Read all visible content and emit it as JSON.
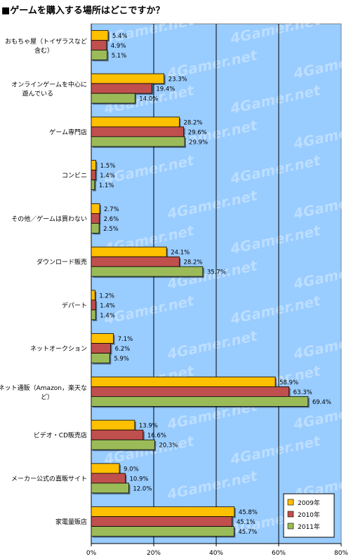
{
  "title": "■ゲームを購入する場所はどこですか？",
  "watermark": "4Gamer.net",
  "chart_data": {
    "type": "bar",
    "orientation": "horizontal",
    "title": "■ゲームを購入する場所はどこですか？",
    "categories": [
      [
        "おもちゃ屋（トイザラスなど",
        "含む）"
      ],
      [
        "オンラインゲームを中心に",
        "遊んでいる"
      ],
      [
        "ゲーム専門店"
      ],
      [
        "コンビニ"
      ],
      [
        "その他／ゲームは買わない"
      ],
      [
        "ダウンロード販売"
      ],
      [
        "デパート"
      ],
      [
        "ネットオークション"
      ],
      [
        "ネット通販（Amazon，楽天な",
        "ど）"
      ],
      [
        "ビデオ・CD販売店"
      ],
      [
        "メーカー公式の直販サイト"
      ],
      [
        "家電量販店"
      ]
    ],
    "series": [
      {
        "name": "2009年",
        "color": "#ffc000",
        "values": [
          5.4,
          23.3,
          28.2,
          1.5,
          2.7,
          24.1,
          1.2,
          7.1,
          58.9,
          13.9,
          9.0,
          45.8
        ]
      },
      {
        "name": "2010年",
        "color": "#c0504d",
        "values": [
          4.9,
          19.4,
          29.6,
          1.4,
          2.6,
          28.2,
          1.4,
          6.2,
          63.3,
          16.6,
          10.9,
          45.1
        ]
      },
      {
        "name": "2011年",
        "color": "#9bbb59",
        "values": [
          5.1,
          14.0,
          29.9,
          1.1,
          2.5,
          35.7,
          1.4,
          5.9,
          69.4,
          20.3,
          12.0,
          45.7
        ]
      }
    ],
    "xlim": [
      0,
      80
    ],
    "xticks": [
      "0%",
      "20%",
      "40%",
      "60%",
      "80%"
    ],
    "xtick_values": [
      0,
      20,
      40,
      60,
      80
    ],
    "grid": true,
    "legend": "bottom-right",
    "plot_background": "#99ccff"
  }
}
